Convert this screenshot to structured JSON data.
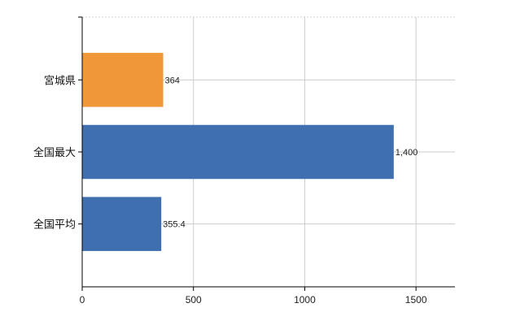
{
  "chart_data": {
    "type": "bar",
    "orientation": "horizontal",
    "categories": [
      "宮城県",
      "全国最大",
      "全国平均"
    ],
    "values": [
      364,
      1400,
      355.4
    ],
    "data_labels": [
      "364",
      "1,400",
      "355.4"
    ],
    "colors": [
      "#f0973a",
      "#3f6faf",
      "#3f6faf"
    ],
    "xlim": [
      0,
      1675
    ],
    "xticks": [
      0,
      500,
      1000,
      1500
    ],
    "xtick_labels": [
      "0",
      "500",
      "1000",
      "1500"
    ],
    "grid": true,
    "legend": "none",
    "title": "",
    "xlabel": "",
    "ylabel": ""
  }
}
